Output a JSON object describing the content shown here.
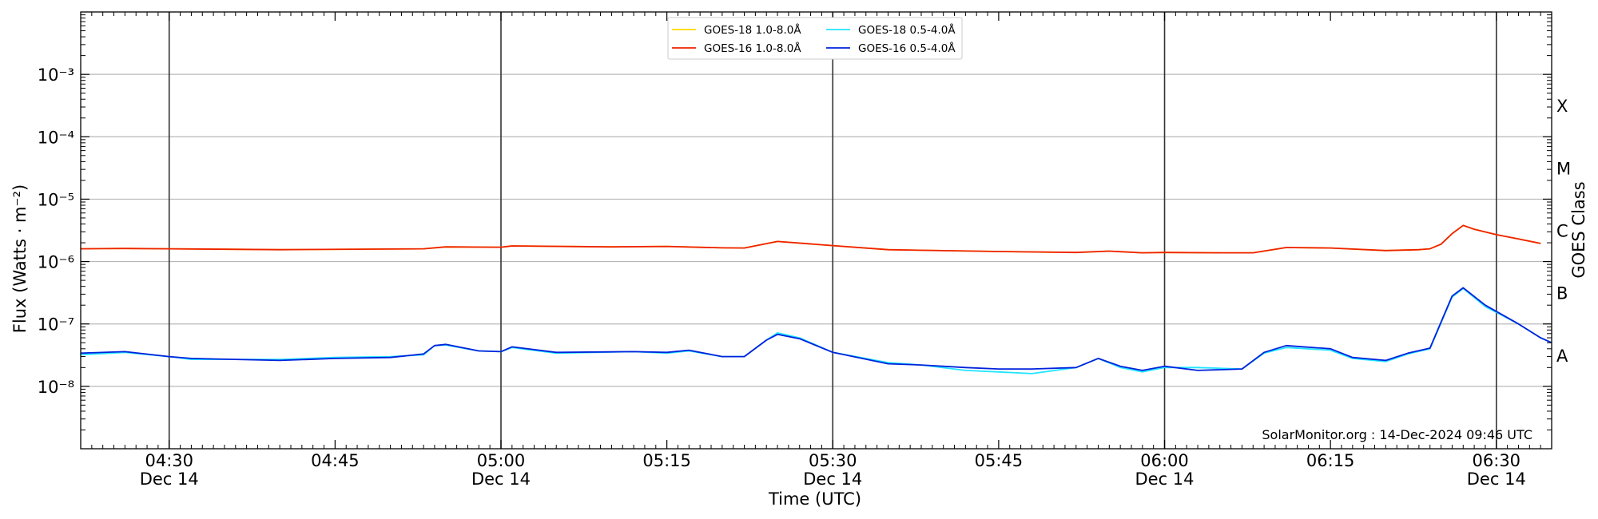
{
  "chart_data": {
    "type": "line",
    "ylabel": "Flux (Watts · m⁻²)",
    "xlabel": "Time (UTC)",
    "right_label": "GOES Class",
    "y_scale": "log",
    "ylim": [
      1e-09,
      0.01
    ],
    "y_ticks": [
      {
        "value": 1e-08,
        "label": "10⁻⁸"
      },
      {
        "value": 1e-07,
        "label": "10⁻⁷"
      },
      {
        "value": 1e-06,
        "label": "10⁻⁶"
      },
      {
        "value": 1e-05,
        "label": "10⁻⁵"
      },
      {
        "value": 0.0001,
        "label": "10⁻⁴"
      },
      {
        "value": 0.001,
        "label": "10⁻³"
      }
    ],
    "gridlines_at": [
      1e-08,
      1e-07,
      1e-06,
      1e-05,
      0.0001,
      0.001
    ],
    "classes": [
      {
        "label": "A",
        "value": 3.16e-08
      },
      {
        "label": "B",
        "value": 3.16e-07
      },
      {
        "label": "C",
        "value": 3.16e-06
      },
      {
        "label": "M",
        "value": 3.16e-05
      },
      {
        "label": "X",
        "value": 0.000316
      }
    ],
    "xlim": [
      "04:22",
      "06:35"
    ],
    "x_ticks": [
      {
        "time": "04:30",
        "label": "04:30",
        "date": "Dec 14"
      },
      {
        "time": "04:45",
        "label": "04:45",
        "date": ""
      },
      {
        "time": "05:00",
        "label": "05:00",
        "date": "Dec 14"
      },
      {
        "time": "05:15",
        "label": "05:15",
        "date": ""
      },
      {
        "time": "05:30",
        "label": "05:30",
        "date": "Dec 14"
      },
      {
        "time": "05:45",
        "label": "05:45",
        "date": ""
      },
      {
        "time": "06:00",
        "label": "06:00",
        "date": "Dec 14"
      },
      {
        "time": "06:15",
        "label": "06:15",
        "date": ""
      },
      {
        "time": "06:30",
        "label": "06:30",
        "date": "Dec 14"
      }
    ],
    "vertical_lines": [
      "04:30",
      "05:00",
      "05:30",
      "06:00",
      "06:30"
    ],
    "legend": {
      "placement": "top-center",
      "columns": 2
    },
    "footer": "SolarMonitor.org : 14-Dec-2024 09:46 UTC",
    "series": [
      {
        "name": "GOES-18 1.0-8.0Å",
        "color": "#ffd700",
        "points": [
          [
            "04:22",
            1.6e-06
          ],
          [
            "04:26",
            1.62e-06
          ],
          [
            "04:30",
            1.6e-06
          ],
          [
            "04:40",
            1.55e-06
          ],
          [
            "04:53",
            1.6e-06
          ],
          [
            "04:55",
            1.72e-06
          ],
          [
            "05:00",
            1.7e-06
          ],
          [
            "05:01",
            1.78e-06
          ],
          [
            "05:10",
            1.72e-06
          ],
          [
            "05:15",
            1.75e-06
          ],
          [
            "05:20",
            1.66e-06
          ],
          [
            "05:22",
            1.65e-06
          ],
          [
            "05:25",
            2.1e-06
          ],
          [
            "05:30",
            1.8e-06
          ],
          [
            "05:35",
            1.55e-06
          ],
          [
            "05:45",
            1.45e-06
          ],
          [
            "05:52",
            1.4e-06
          ],
          [
            "05:55",
            1.47e-06
          ],
          [
            "05:58",
            1.38e-06
          ],
          [
            "06:00",
            1.4e-06
          ],
          [
            "06:05",
            1.38e-06
          ],
          [
            "06:08",
            1.38e-06
          ],
          [
            "06:11",
            1.68e-06
          ],
          [
            "06:15",
            1.65e-06
          ],
          [
            "06:20",
            1.5e-06
          ],
          [
            "06:23",
            1.55e-06
          ],
          [
            "06:24",
            1.6e-06
          ],
          [
            "06:25",
            1.9e-06
          ],
          [
            "06:26",
            2.8e-06
          ],
          [
            "06:27",
            3.8e-06
          ],
          [
            "06:28",
            3.3e-06
          ],
          [
            "06:30",
            2.7e-06
          ],
          [
            "06:32",
            2.3e-06
          ],
          [
            "06:34",
            1.95e-06
          ]
        ]
      },
      {
        "name": "GOES-16 1.0-8.0Å",
        "color": "#ee2200",
        "points": [
          [
            "04:22",
            1.6e-06
          ],
          [
            "04:26",
            1.62e-06
          ],
          [
            "04:30",
            1.6e-06
          ],
          [
            "04:40",
            1.55e-06
          ],
          [
            "04:53",
            1.6e-06
          ],
          [
            "04:55",
            1.72e-06
          ],
          [
            "05:00",
            1.7e-06
          ],
          [
            "05:01",
            1.78e-06
          ],
          [
            "05:10",
            1.72e-06
          ],
          [
            "05:15",
            1.75e-06
          ],
          [
            "05:20",
            1.66e-06
          ],
          [
            "05:22",
            1.65e-06
          ],
          [
            "05:25",
            2.1e-06
          ],
          [
            "05:30",
            1.8e-06
          ],
          [
            "05:35",
            1.55e-06
          ],
          [
            "05:45",
            1.45e-06
          ],
          [
            "05:52",
            1.4e-06
          ],
          [
            "05:55",
            1.47e-06
          ],
          [
            "05:58",
            1.38e-06
          ],
          [
            "06:00",
            1.4e-06
          ],
          [
            "06:05",
            1.38e-06
          ],
          [
            "06:08",
            1.38e-06
          ],
          [
            "06:11",
            1.68e-06
          ],
          [
            "06:15",
            1.65e-06
          ],
          [
            "06:20",
            1.5e-06
          ],
          [
            "06:23",
            1.55e-06
          ],
          [
            "06:24",
            1.6e-06
          ],
          [
            "06:25",
            1.9e-06
          ],
          [
            "06:26",
            2.8e-06
          ],
          [
            "06:27",
            3.8e-06
          ],
          [
            "06:28",
            3.3e-06
          ],
          [
            "06:30",
            2.7e-06
          ],
          [
            "06:32",
            2.3e-06
          ],
          [
            "06:34",
            1.95e-06
          ]
        ]
      },
      {
        "name": "GOES-18 0.5-4.0Å",
        "color": "#22e5ff",
        "points": [
          [
            "04:22",
            3.2e-08
          ],
          [
            "04:26",
            3.5e-08
          ],
          [
            "04:30",
            3e-08
          ],
          [
            "04:32",
            2.7e-08
          ],
          [
            "04:40",
            2.7e-08
          ],
          [
            "04:45",
            2.9e-08
          ],
          [
            "04:50",
            3e-08
          ],
          [
            "04:53",
            3.2e-08
          ],
          [
            "04:54",
            4.5e-08
          ],
          [
            "04:55",
            4.6e-08
          ],
          [
            "04:58",
            3.7e-08
          ],
          [
            "05:00",
            3.6e-08
          ],
          [
            "05:01",
            4.2e-08
          ],
          [
            "05:05",
            3.4e-08
          ],
          [
            "05:12",
            3.6e-08
          ],
          [
            "05:15",
            3.4e-08
          ],
          [
            "05:17",
            3.7e-08
          ],
          [
            "05:20",
            3e-08
          ],
          [
            "05:22",
            3e-08
          ],
          [
            "05:24",
            5.5e-08
          ],
          [
            "05:25",
            7.2e-08
          ],
          [
            "05:27",
            6e-08
          ],
          [
            "05:30",
            3.5e-08
          ],
          [
            "05:35",
            2.4e-08
          ],
          [
            "05:38",
            2.2e-08
          ],
          [
            "05:42",
            1.8e-08
          ],
          [
            "05:45",
            1.7e-08
          ],
          [
            "05:48",
            1.6e-08
          ],
          [
            "05:52",
            2e-08
          ],
          [
            "05:54",
            2.8e-08
          ],
          [
            "05:56",
            2e-08
          ],
          [
            "05:58",
            1.7e-08
          ],
          [
            "06:00",
            2e-08
          ],
          [
            "06:03",
            2e-08
          ],
          [
            "06:07",
            1.9e-08
          ],
          [
            "06:09",
            3.4e-08
          ],
          [
            "06:11",
            4.2e-08
          ],
          [
            "06:15",
            3.8e-08
          ],
          [
            "06:17",
            2.8e-08
          ],
          [
            "06:20",
            2.5e-08
          ],
          [
            "06:22",
            3.3e-08
          ],
          [
            "06:24",
            4e-08
          ],
          [
            "06:26",
            2.7e-07
          ],
          [
            "06:27",
            3.7e-07
          ],
          [
            "06:29",
            1.9e-07
          ],
          [
            "06:32",
            1e-07
          ],
          [
            "06:34",
            6e-08
          ],
          [
            "06:35",
            5e-08
          ]
        ]
      },
      {
        "name": "GOES-16 0.5-4.0Å",
        "color": "#0022dd",
        "points": [
          [
            "04:22",
            3.4e-08
          ],
          [
            "04:26",
            3.6e-08
          ],
          [
            "04:30",
            3e-08
          ],
          [
            "04:32",
            2.8e-08
          ],
          [
            "04:40",
            2.6e-08
          ],
          [
            "04:45",
            2.8e-08
          ],
          [
            "04:50",
            2.9e-08
          ],
          [
            "04:53",
            3.3e-08
          ],
          [
            "04:54",
            4.5e-08
          ],
          [
            "04:55",
            4.7e-08
          ],
          [
            "04:58",
            3.7e-08
          ],
          [
            "05:00",
            3.6e-08
          ],
          [
            "05:01",
            4.3e-08
          ],
          [
            "05:05",
            3.5e-08
          ],
          [
            "05:12",
            3.6e-08
          ],
          [
            "05:15",
            3.5e-08
          ],
          [
            "05:17",
            3.8e-08
          ],
          [
            "05:20",
            3e-08
          ],
          [
            "05:22",
            3e-08
          ],
          [
            "05:24",
            5.5e-08
          ],
          [
            "05:25",
            6.8e-08
          ],
          [
            "05:27",
            5.8e-08
          ],
          [
            "05:30",
            3.5e-08
          ],
          [
            "05:35",
            2.3e-08
          ],
          [
            "05:38",
            2.2e-08
          ],
          [
            "05:42",
            2e-08
          ],
          [
            "05:45",
            1.9e-08
          ],
          [
            "05:48",
            1.9e-08
          ],
          [
            "05:52",
            2e-08
          ],
          [
            "05:54",
            2.8e-08
          ],
          [
            "05:56",
            2.1e-08
          ],
          [
            "05:58",
            1.8e-08
          ],
          [
            "06:00",
            2.1e-08
          ],
          [
            "06:03",
            1.8e-08
          ],
          [
            "06:07",
            1.9e-08
          ],
          [
            "06:09",
            3.5e-08
          ],
          [
            "06:11",
            4.5e-08
          ],
          [
            "06:15",
            4e-08
          ],
          [
            "06:17",
            2.9e-08
          ],
          [
            "06:20",
            2.6e-08
          ],
          [
            "06:22",
            3.4e-08
          ],
          [
            "06:24",
            4.1e-08
          ],
          [
            "06:26",
            2.8e-07
          ],
          [
            "06:27",
            3.8e-07
          ],
          [
            "06:29",
            2e-07
          ],
          [
            "06:32",
            1e-07
          ],
          [
            "06:34",
            6e-08
          ],
          [
            "06:35",
            5e-08
          ]
        ]
      }
    ]
  }
}
